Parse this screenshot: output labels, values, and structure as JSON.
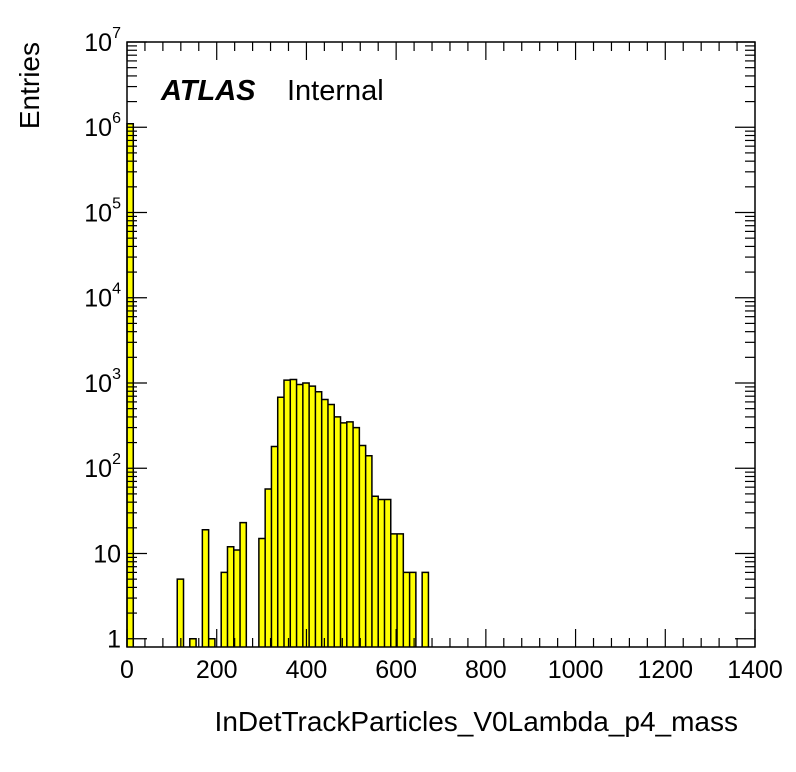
{
  "chart_data": {
    "type": "bar",
    "title": "",
    "xlabel": "InDetTrackParticles_V0Lambda_p4_mass",
    "ylabel": "Entries",
    "xlim": [
      0,
      1400
    ],
    "ylim": [
      0.8,
      10000000
    ],
    "y_scale": "log",
    "grid": false,
    "legend": "none",
    "annotation": {
      "experiment": "ATLAS",
      "status": "Internal"
    },
    "fill_color": "#ffff00",
    "line_color": "#000000",
    "x_ticks": [
      "0",
      "200",
      "400",
      "600",
      "800",
      "1000",
      "1200",
      "1400"
    ],
    "y_ticks": [
      {
        "value": 1,
        "base": "1",
        "exp": ""
      },
      {
        "value": 10,
        "base": "10",
        "exp": ""
      },
      {
        "value": 100,
        "base": "10",
        "exp": "2"
      },
      {
        "value": 1000,
        "base": "10",
        "exp": "3"
      },
      {
        "value": 10000,
        "base": "10",
        "exp": "4"
      },
      {
        "value": 100000,
        "base": "10",
        "exp": "5"
      },
      {
        "value": 1000000,
        "base": "10",
        "exp": "6"
      },
      {
        "value": 10000000,
        "base": "10",
        "exp": "7"
      }
    ],
    "bins": [
      {
        "x0": 0,
        "x1": 14,
        "value": 1100000
      },
      {
        "x0": 112,
        "x1": 126,
        "value": 5
      },
      {
        "x0": 140,
        "x1": 154,
        "value": 1
      },
      {
        "x0": 168,
        "x1": 182,
        "value": 19
      },
      {
        "x0": 182,
        "x1": 196,
        "value": 1
      },
      {
        "x0": 210,
        "x1": 224,
        "value": 6
      },
      {
        "x0": 224,
        "x1": 238,
        "value": 12
      },
      {
        "x0": 238,
        "x1": 252,
        "value": 11
      },
      {
        "x0": 252,
        "x1": 266,
        "value": 23
      },
      {
        "x0": 294,
        "x1": 308,
        "value": 15
      },
      {
        "x0": 308,
        "x1": 322,
        "value": 57
      },
      {
        "x0": 322,
        "x1": 336,
        "value": 180
      },
      {
        "x0": 336,
        "x1": 350,
        "value": 680
      },
      {
        "x0": 350,
        "x1": 364,
        "value": 1080
      },
      {
        "x0": 364,
        "x1": 378,
        "value": 1100
      },
      {
        "x0": 378,
        "x1": 392,
        "value": 960
      },
      {
        "x0": 392,
        "x1": 406,
        "value": 1000
      },
      {
        "x0": 406,
        "x1": 420,
        "value": 920
      },
      {
        "x0": 420,
        "x1": 434,
        "value": 790
      },
      {
        "x0": 434,
        "x1": 448,
        "value": 640
      },
      {
        "x0": 448,
        "x1": 462,
        "value": 560
      },
      {
        "x0": 462,
        "x1": 476,
        "value": 400
      },
      {
        "x0": 476,
        "x1": 490,
        "value": 340
      },
      {
        "x0": 490,
        "x1": 504,
        "value": 350
      },
      {
        "x0": 504,
        "x1": 518,
        "value": 300
      },
      {
        "x0": 518,
        "x1": 532,
        "value": 185
      },
      {
        "x0": 532,
        "x1": 546,
        "value": 140
      },
      {
        "x0": 546,
        "x1": 560,
        "value": 47
      },
      {
        "x0": 560,
        "x1": 574,
        "value": 43
      },
      {
        "x0": 574,
        "x1": 588,
        "value": 43
      },
      {
        "x0": 588,
        "x1": 602,
        "value": 17
      },
      {
        "x0": 602,
        "x1": 616,
        "value": 17
      },
      {
        "x0": 616,
        "x1": 630,
        "value": 6
      },
      {
        "x0": 630,
        "x1": 644,
        "value": 6
      },
      {
        "x0": 658,
        "x1": 672,
        "value": 6
      }
    ]
  }
}
